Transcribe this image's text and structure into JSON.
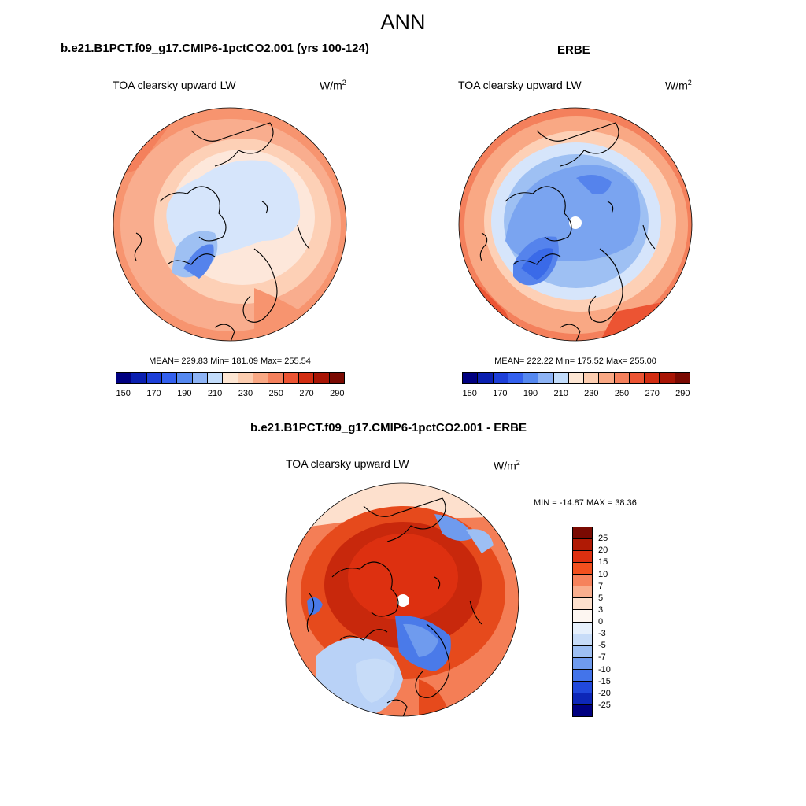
{
  "figure": {
    "title": "ANN"
  },
  "panels": [
    {
      "id": "model",
      "title": "b.e21.B1PCT.f09_g17.CMIP6-1pctCO2.001 (yrs 100-124)",
      "variable": "TOA clearsky upward LW",
      "units_base": "W/m",
      "units_exp": "2",
      "stats": "MEAN= 229.83  Min= 181.09  Max= 255.54"
    },
    {
      "id": "obs",
      "title": "ERBE",
      "variable": "TOA clearsky upward LW",
      "units_base": "W/m",
      "units_exp": "2",
      "stats": "MEAN= 222.22  Min= 175.52  Max= 255.00"
    },
    {
      "id": "diff",
      "title": "b.e21.B1PCT.f09_g17.CMIP6-1pctCO2.001 - ERBE",
      "variable": "TOA clearsky upward LW",
      "units_base": "W/m",
      "units_exp": "2",
      "stats": "MIN = -14.87 MAX =  38.36"
    }
  ],
  "field_colorbar": {
    "tick_labels": [
      "150",
      "170",
      "190",
      "210",
      "230",
      "250",
      "270",
      "290"
    ],
    "colors": [
      "#000080",
      "#0a1fb0",
      "#1d3fd8",
      "#3360ee",
      "#5588f0",
      "#8db3f5",
      "#c2dcfb",
      "#fde6d3",
      "#fccdb0",
      "#f9a884",
      "#f4805c",
      "#ec5433",
      "#d22d12",
      "#a81505",
      "#7a0a02"
    ]
  },
  "diff_colorbar": {
    "tick_labels": [
      "25",
      "20",
      "15",
      "10",
      "7",
      "5",
      "3",
      "0",
      "-3",
      "-5",
      "-7",
      "-10",
      "-15",
      "-20",
      "-25"
    ],
    "colors": [
      "#7a0a02",
      "#b01a05",
      "#dd3010",
      "#f2501e",
      "#f6825c",
      "#f9ae8e",
      "#fde0cd",
      "#fdf6f1",
      "#e6f0fc",
      "#c7dcf8",
      "#9dbff3",
      "#6f9bee",
      "#4374ea",
      "#2149dc",
      "#0d27b8",
      "#000080"
    ]
  },
  "map_colors": {
    "warm_outer": "#f6856a",
    "warm_mid": "#f9ad8e",
    "warm_light": "#fdd0b6",
    "neutral": "#fde7da",
    "cool_light": "#d6e5fb",
    "cool_mid": "#9ec0f3",
    "cool_dark": "#5583ec",
    "diff_red_dark": "#c8280c",
    "diff_red": "#e64a1c",
    "diff_red_light": "#f47e56",
    "diff_blue": "#4a7ae9",
    "diff_blue_light": "#b9d2f7"
  }
}
